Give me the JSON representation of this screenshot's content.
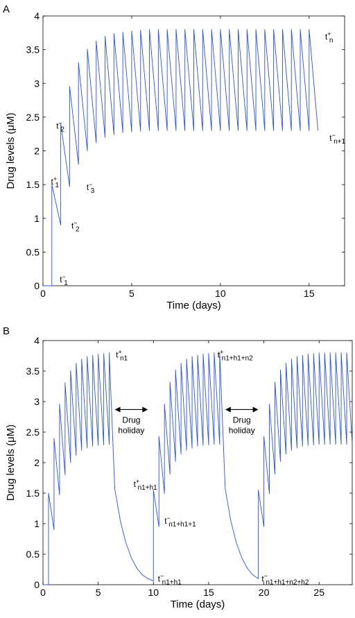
{
  "chart_data": [
    {
      "type": "line",
      "panel_label": "A",
      "xlabel": "Time (days)",
      "ylabel": "Drug levels (μM)",
      "xlim": [
        0,
        17
      ],
      "ylim": [
        0,
        4
      ],
      "xticks": [
        0,
        5,
        10,
        15
      ],
      "yticks": [
        0,
        0.5,
        1,
        1.5,
        2,
        2.5,
        3,
        3.5,
        4
      ],
      "xtick_labels": [
        "0",
        "5",
        "10",
        "15"
      ],
      "ytick_labels": [
        "0",
        "0.5",
        "1",
        "1.5",
        "2",
        "2.5",
        "3",
        "3.5",
        "4"
      ],
      "grid": false,
      "line_color": "#2a50e0",
      "series": [
        {
          "x": [
            0,
            0.5,
            0.5,
            1.0,
            1.0,
            1.5,
            1.5,
            2.0,
            2.0,
            2.5,
            2.5,
            3.0,
            3.0,
            3.5,
            3.5,
            4.0,
            4.0,
            4.5,
            4.5,
            5.0,
            5.0,
            5.5,
            5.5,
            6.0,
            6.0,
            6.5,
            6.5,
            7.0,
            7.0,
            7.5,
            7.5,
            8.0,
            8.0,
            8.5,
            8.5,
            9.0,
            9.0,
            9.5,
            9.5,
            10.0,
            10.0,
            10.5,
            10.5,
            11.0,
            11.0,
            11.5,
            11.5,
            12.0,
            12.0,
            12.5,
            12.5,
            13.0,
            13.0,
            13.5,
            13.5,
            14.0,
            14.0,
            14.5,
            14.5,
            15.0,
            15.0,
            15.5
          ],
          "y": [
            0,
            0,
            1.5,
            0.9,
            2.4,
            1.47,
            2.96,
            1.8,
            3.31,
            2.0,
            3.51,
            2.12,
            3.63,
            2.2,
            3.7,
            2.24,
            3.74,
            2.27,
            3.76,
            2.28,
            3.78,
            2.29,
            3.79,
            2.3,
            3.8,
            2.3,
            3.8,
            2.3,
            3.8,
            2.3,
            3.8,
            2.3,
            3.8,
            2.3,
            3.8,
            2.3,
            3.8,
            2.3,
            3.8,
            2.3,
            3.8,
            2.3,
            3.8,
            2.3,
            3.8,
            2.3,
            3.8,
            2.3,
            3.8,
            2.3,
            3.8,
            2.3,
            3.8,
            2.3,
            3.8,
            2.3,
            3.8,
            2.3,
            3.8,
            2.3,
            3.8,
            2.3
          ]
        }
      ],
      "annotations": [
        {
          "base": "t",
          "sup": "+",
          "sub": "1",
          "x": 0.45,
          "y": 1.5
        },
        {
          "base": "t",
          "sup": "−",
          "sub": "1",
          "x": 0.95,
          "y": 0.05
        },
        {
          "base": "t",
          "sup": "−",
          "sub": "2",
          "x": 0.75,
          "y": 2.33
        },
        {
          "base": "t",
          "sup": "−",
          "sub": "2",
          "x": 1.6,
          "y": 0.85
        },
        {
          "base": "t",
          "sup": "−",
          "sub": "3",
          "x": 2.45,
          "y": 1.42
        },
        {
          "base": "t",
          "sup": "+",
          "sub": "n",
          "x": 15.9,
          "y": 3.65
        },
        {
          "base": "t",
          "sup": "−",
          "sub": "n+1",
          "x": 16.15,
          "y": 2.15
        }
      ]
    },
    {
      "type": "line",
      "panel_label": "B",
      "xlabel": "Time (days)",
      "ylabel": "Drug levels (μM)",
      "xlim": [
        0,
        28
      ],
      "ylim": [
        0,
        4
      ],
      "xticks": [
        0,
        5,
        10,
        15,
        20,
        25
      ],
      "yticks": [
        0,
        0.5,
        1,
        1.5,
        2,
        2.5,
        3,
        3.5,
        4
      ],
      "xtick_labels": [
        "0",
        "5",
        "10",
        "15",
        "20",
        "25"
      ],
      "ytick_labels": [
        "0",
        "0.5",
        "1",
        "1.5",
        "2",
        "2.5",
        "3",
        "3.5",
        "4"
      ],
      "grid": false,
      "line_color": "#2a50e0",
      "series": [
        {
          "x": [
            0,
            0.5,
            0.5,
            1.0,
            1.0,
            1.5,
            1.5,
            2.0,
            2.0,
            2.5,
            2.5,
            3.0,
            3.0,
            3.5,
            3.5,
            4.0,
            4.0,
            4.5,
            4.5,
            5.0,
            5.0,
            5.5,
            5.5,
            6.0,
            6.0,
            6.5,
            7.0,
            7.5,
            8.0,
            8.5,
            9.0,
            9.5,
            10.0,
            10.0,
            10.5,
            10.5,
            11.0,
            11.0,
            11.5,
            11.5,
            12.0,
            12.0,
            12.5,
            12.5,
            13.0,
            13.0,
            13.5,
            13.5,
            14.0,
            14.0,
            14.5,
            14.5,
            15.0,
            15.0,
            15.5,
            15.5,
            16.0,
            16.0,
            16.5,
            17.0,
            17.5,
            18.0,
            18.5,
            19.0,
            19.5,
            19.5,
            20.0,
            20.0,
            20.5,
            20.5,
            21.0,
            21.0,
            21.5,
            21.5,
            22.0,
            22.0,
            22.5,
            22.5,
            23.0,
            23.0,
            23.5,
            23.5,
            24.0,
            24.0,
            24.5,
            24.5,
            25.0,
            25.0,
            25.5,
            25.5,
            26.0,
            26.0,
            26.5,
            26.5,
            27.0,
            27.0,
            27.5,
            27.5,
            28.0
          ],
          "y": [
            0,
            0,
            1.5,
            0.9,
            2.4,
            1.47,
            2.96,
            1.8,
            3.31,
            2.0,
            3.51,
            2.12,
            3.63,
            2.2,
            3.7,
            2.24,
            3.74,
            2.27,
            3.76,
            2.28,
            3.78,
            2.29,
            3.79,
            2.3,
            3.8,
            1.57,
            1.05,
            0.69,
            0.44,
            0.27,
            0.16,
            0.1,
            0.06,
            1.55,
            0.95,
            2.43,
            1.49,
            2.96,
            1.81,
            3.32,
            2.02,
            3.52,
            2.14,
            3.63,
            2.2,
            3.7,
            2.24,
            3.74,
            2.27,
            3.76,
            2.28,
            3.78,
            2.29,
            3.79,
            2.3,
            3.8,
            2.3,
            3.8,
            1.57,
            1.05,
            0.69,
            0.44,
            0.27,
            0.16,
            0.1,
            1.55,
            0.95,
            2.43,
            1.49,
            2.96,
            1.81,
            3.32,
            2.02,
            3.52,
            2.14,
            3.63,
            2.2,
            3.7,
            2.24,
            3.74,
            2.27,
            3.76,
            2.28,
            3.78,
            2.29,
            3.79,
            2.3,
            3.8,
            2.3,
            3.8,
            2.3,
            3.8,
            2.3,
            3.8,
            2.3,
            3.8,
            2.3,
            3.8,
            2.3
          ]
        }
      ],
      "annotations": [
        {
          "base": "t",
          "sup": "+",
          "sub": "n1",
          "x": 6.6,
          "y": 3.72
        },
        {
          "base": "t",
          "sup": "+",
          "sub": "n1+h1",
          "x": 8.2,
          "y": 1.6
        },
        {
          "base": "t",
          "sup": "−",
          "sub": "n1+h1+1",
          "x": 11.0,
          "y": 1.0
        },
        {
          "base": "t",
          "sup": "−",
          "sub": "n1+h1",
          "x": 10.4,
          "y": 0.05
        },
        {
          "base": "t",
          "sup": "+",
          "sub": "n1+h1+n2",
          "x": 15.8,
          "y": 3.72
        },
        {
          "base": "t",
          "sup": "−",
          "sub": "n1+h1+n2+h2",
          "x": 19.8,
          "y": 0.05
        }
      ],
      "holiday_labels": [
        {
          "line1": "Drug",
          "line2": "holiday",
          "x1": 6.5,
          "x2": 9.5,
          "y": 2.87
        },
        {
          "line1": "Drug",
          "line2": "holiday",
          "x1": 16.5,
          "x2": 19.5,
          "y": 2.87
        }
      ]
    }
  ]
}
